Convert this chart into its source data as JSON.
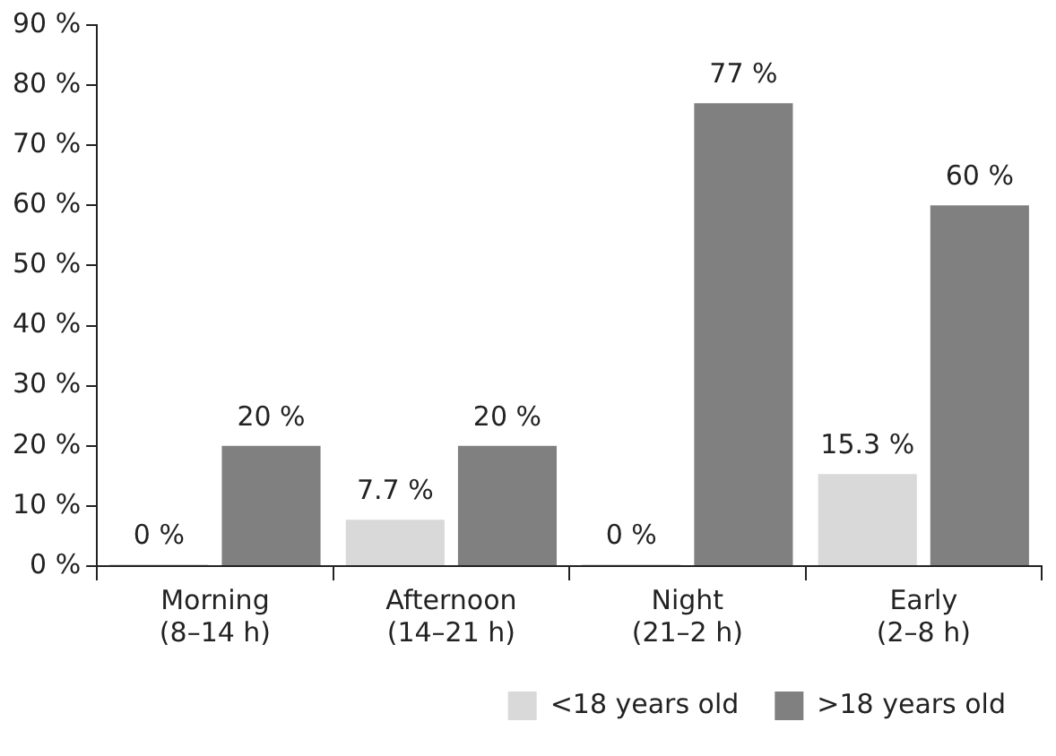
{
  "chart_data": {
    "type": "bar",
    "categories": [
      "Morning\n(8–14 h)",
      "Afternoon\n(14–21 h)",
      "Night\n(21–2 h)",
      "Early\n(2–8 h)"
    ],
    "series": [
      {
        "name": "<18 years old",
        "color": "#d9d9d9",
        "values": [
          0,
          7.7,
          0,
          15.3
        ],
        "value_labels": [
          "0 %",
          "7.7 %",
          "0 %",
          "15.3 %"
        ]
      },
      {
        "name": ">18 years old",
        "color": "#808080",
        "values": [
          20,
          20,
          77,
          60
        ],
        "value_labels": [
          "20 %",
          "20 %",
          "77 %",
          "60 %"
        ]
      }
    ],
    "ylim": [
      0,
      90
    ],
    "yticks": [
      {
        "value": 0,
        "label": "0 %"
      },
      {
        "value": 10,
        "label": "10 %"
      },
      {
        "value": 20,
        "label": "20 %"
      },
      {
        "value": 30,
        "label": "30 %"
      },
      {
        "value": 40,
        "label": "40 %"
      },
      {
        "value": 50,
        "label": "50 %"
      },
      {
        "value": 60,
        "label": "60 %"
      },
      {
        "value": 70,
        "label": "70 %"
      },
      {
        "value": 80,
        "label": "80 %"
      },
      {
        "value": 90,
        "label": "90 %"
      }
    ],
    "grid": false,
    "legend": "bottom"
  }
}
